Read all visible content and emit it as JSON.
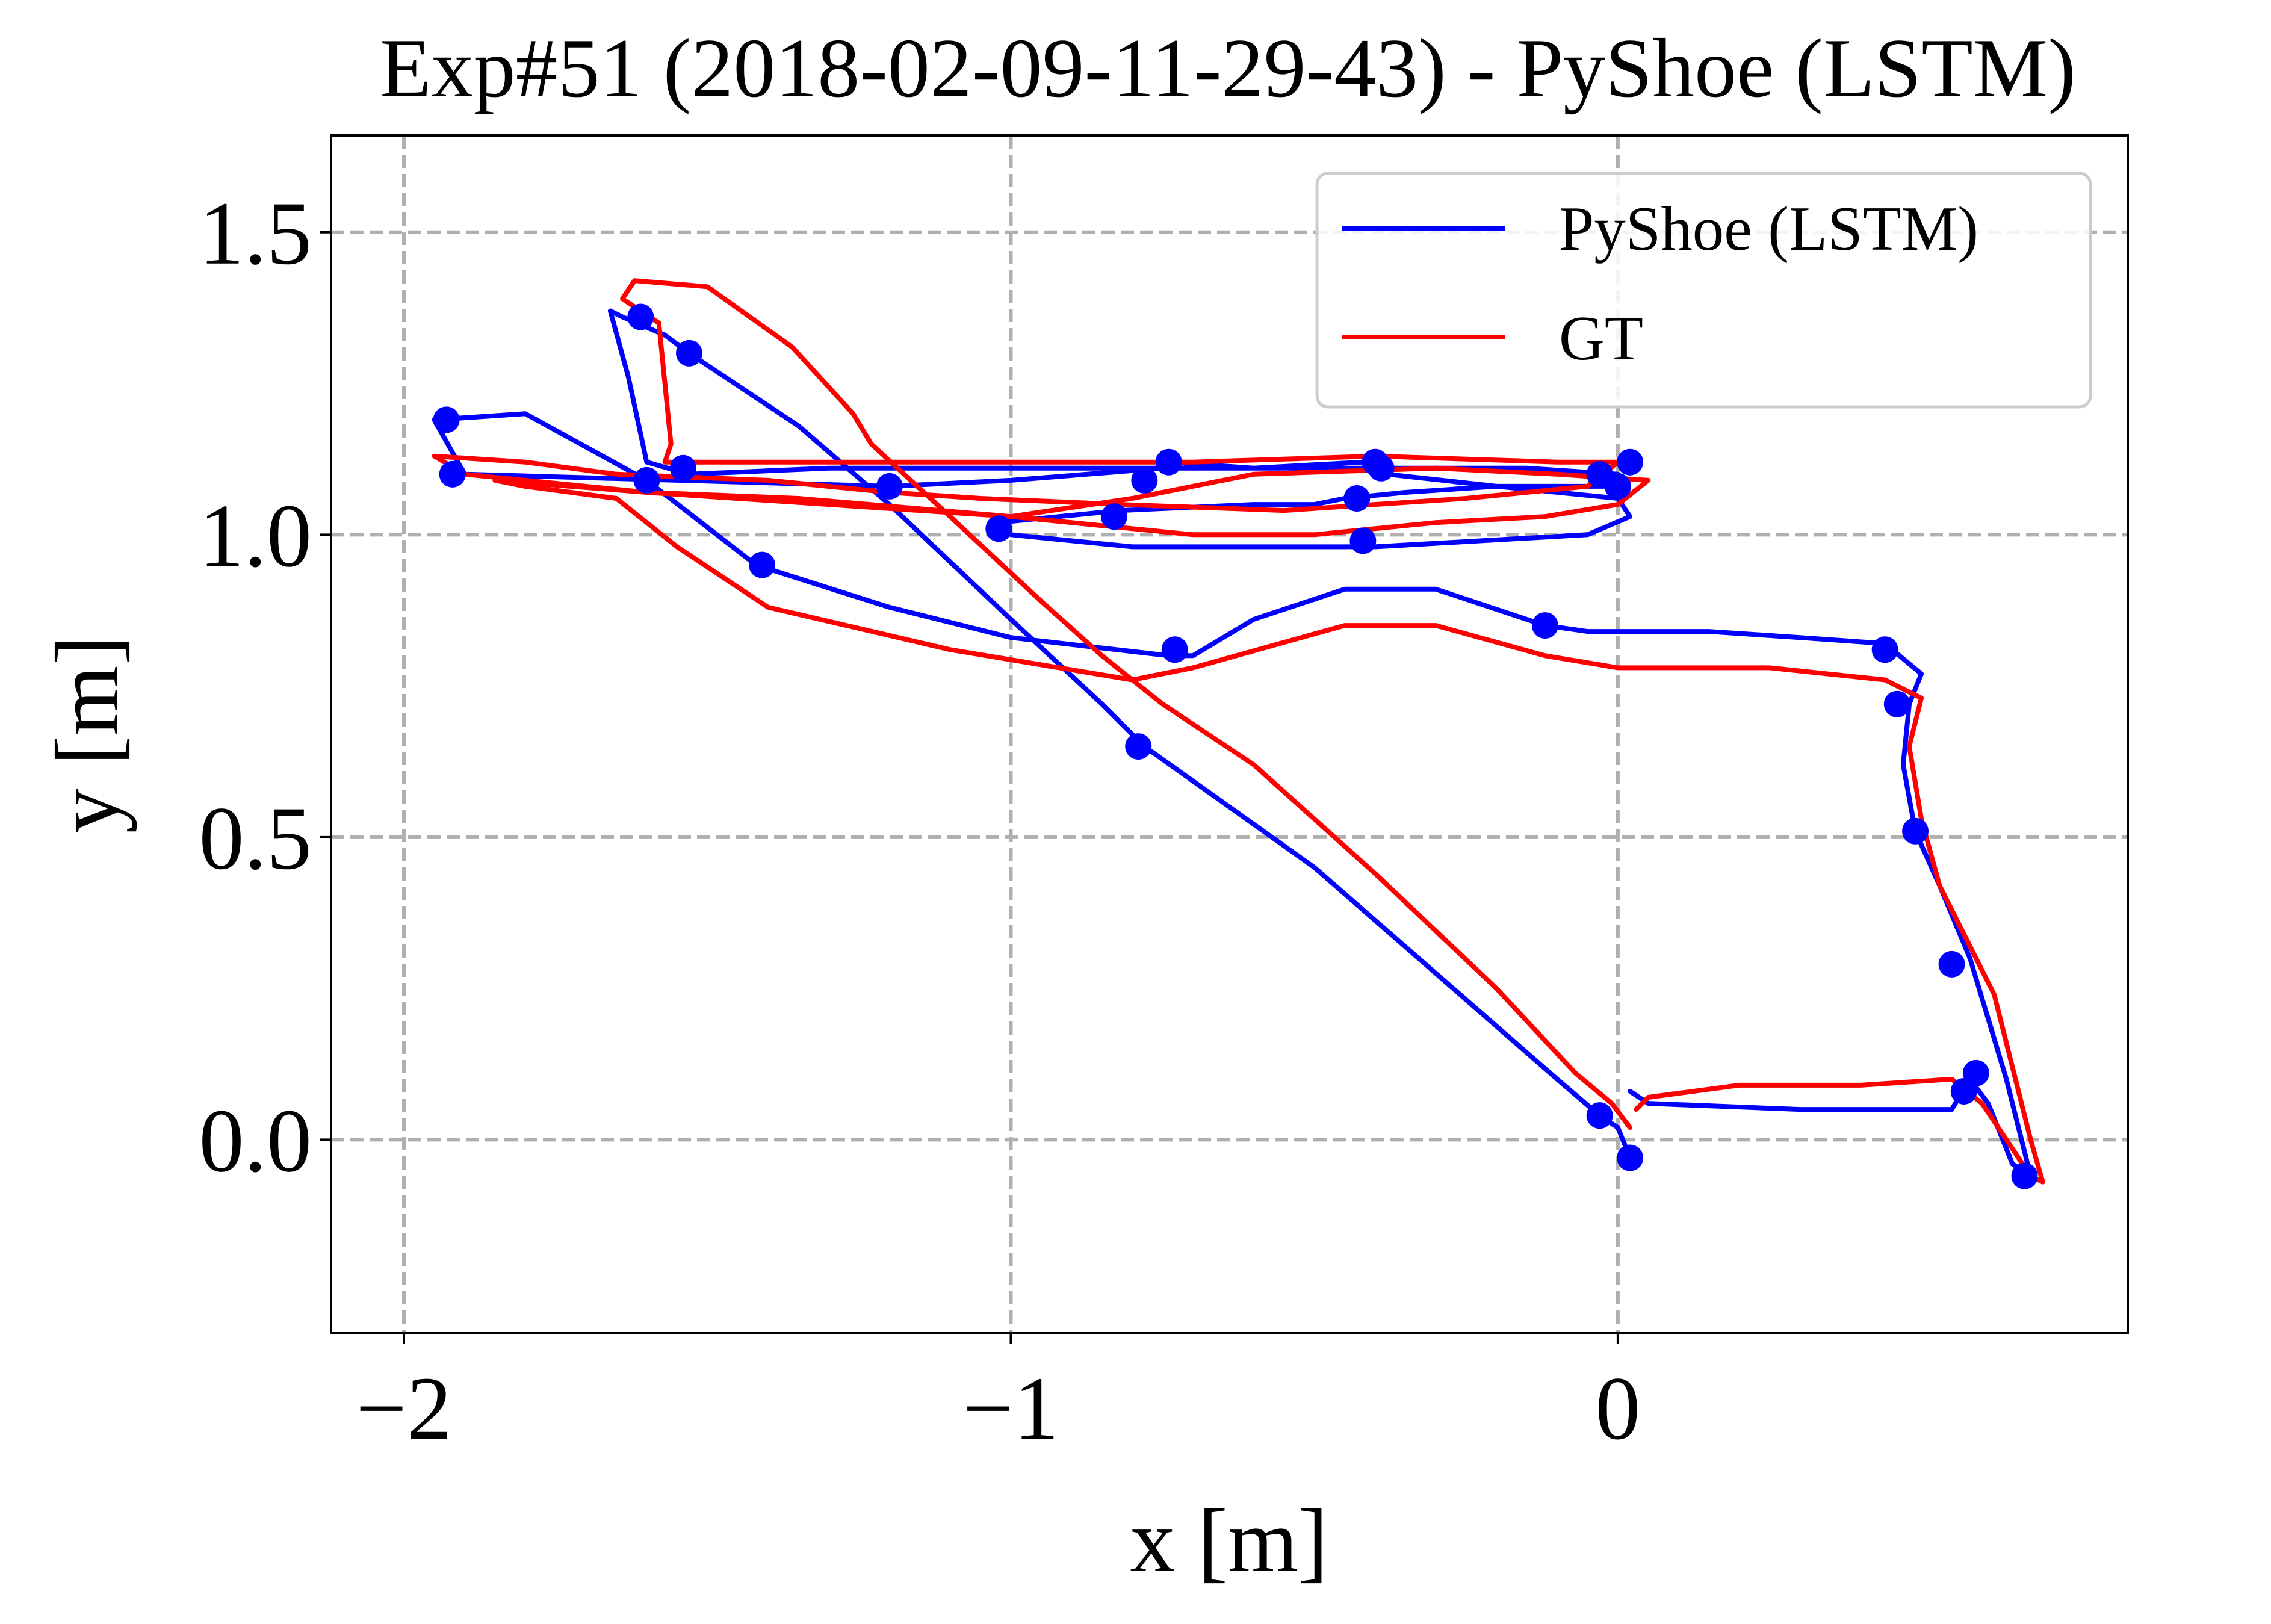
{
  "chart_data": {
    "type": "line",
    "title": "Exp#51 (2018-02-09-11-29-43) - PyShoe (LSTM)",
    "xlabel": "x [m]",
    "ylabel": "y [m]",
    "xlim": [
      -2.12,
      0.84
    ],
    "ylim": [
      -0.32,
      1.66
    ],
    "x_ticks": [
      {
        "value": -2,
        "label": "−2"
      },
      {
        "value": -1,
        "label": "−1"
      },
      {
        "value": 0,
        "label": "0"
      }
    ],
    "y_ticks": [
      {
        "value": 0.0,
        "label": "0.0"
      },
      {
        "value": 0.5,
        "label": "0.5"
      },
      {
        "value": 1.0,
        "label": "1.0"
      },
      {
        "value": 1.5,
        "label": "1.5"
      }
    ],
    "grid": true,
    "legend_position": "top-right",
    "series": [
      {
        "name": "PyShoe (LSTM)",
        "color": "#0000ff",
        "x": [
          0.02,
          0.0,
          -0.03,
          -0.1,
          -0.5,
          -0.78,
          -0.85,
          -1.0,
          -1.2,
          -1.35,
          -1.53,
          -1.57,
          -1.64,
          -1.66,
          -1.63,
          -1.6,
          -1.53,
          -1.3,
          -1.1,
          -0.85,
          -0.82,
          -0.7,
          -0.55,
          -0.4,
          -0.15,
          0.0,
          0.0,
          -0.2,
          -0.35,
          -0.45,
          -0.5,
          -0.6,
          -0.82,
          -1.02,
          -1.0,
          -0.8,
          -0.4,
          -0.05,
          0.02,
          0.0,
          -0.2,
          -0.38,
          -0.42,
          -0.6,
          -0.74,
          -0.75,
          -1.0,
          -1.2,
          -1.55,
          -1.9,
          -1.95,
          -1.8,
          -1.6,
          -1.42,
          -1.2,
          -1.0,
          -0.74,
          -0.7,
          -0.6,
          -0.45,
          -0.3,
          -0.12,
          -0.05,
          0.15,
          0.3,
          0.44,
          0.5,
          0.48,
          0.47,
          0.49,
          0.53,
          0.58,
          0.61,
          0.64,
          0.68,
          0.65,
          0.61,
          0.58,
          0.55,
          0.3,
          0.05,
          0.02
        ],
        "y": [
          -0.03,
          0.02,
          0.04,
          0.1,
          0.45,
          0.65,
          0.72,
          0.86,
          1.05,
          1.18,
          1.3,
          1.33,
          1.36,
          1.37,
          1.26,
          1.12,
          1.1,
          1.11,
          1.11,
          1.11,
          1.11,
          1.11,
          1.11,
          1.11,
          1.11,
          1.1,
          1.08,
          1.08,
          1.07,
          1.06,
          1.05,
          1.05,
          1.04,
          1.02,
          1.0,
          0.98,
          0.98,
          1.0,
          1.03,
          1.06,
          1.08,
          1.1,
          1.12,
          1.11,
          1.12,
          1.11,
          1.09,
          1.08,
          1.09,
          1.1,
          1.19,
          1.2,
          1.09,
          0.95,
          0.88,
          0.83,
          0.8,
          0.8,
          0.86,
          0.91,
          0.91,
          0.85,
          0.84,
          0.84,
          0.83,
          0.82,
          0.77,
          0.72,
          0.62,
          0.51,
          0.42,
          0.3,
          0.2,
          0.1,
          -0.06,
          -0.04,
          0.06,
          0.1,
          0.05,
          0.05,
          0.06,
          0.08
        ],
        "markers": [
          [
            0.02,
            -0.03
          ],
          [
            -0.03,
            0.04
          ],
          [
            -0.79,
            0.65
          ],
          [
            -1.2,
            1.08
          ],
          [
            -1.53,
            1.3
          ],
          [
            -1.61,
            1.36
          ],
          [
            -1.6,
            1.09
          ],
          [
            -1.54,
            1.11
          ],
          [
            -0.74,
            1.12
          ],
          [
            -0.39,
            1.11
          ],
          [
            -0.4,
            1.12
          ],
          [
            -0.78,
            1.09
          ],
          [
            -0.03,
            1.1
          ],
          [
            0.02,
            1.12
          ],
          [
            0.0,
            1.08
          ],
          [
            -0.43,
            1.06
          ],
          [
            -0.83,
            1.03
          ],
          [
            -1.02,
            1.01
          ],
          [
            -0.42,
            0.99
          ],
          [
            -1.93,
            1.19
          ],
          [
            -1.92,
            1.1
          ],
          [
            -1.41,
            0.95
          ],
          [
            -0.73,
            0.81
          ],
          [
            -0.12,
            0.85
          ],
          [
            0.44,
            0.81
          ],
          [
            0.46,
            0.72
          ],
          [
            0.49,
            0.51
          ],
          [
            0.55,
            0.29
          ],
          [
            0.59,
            0.11
          ],
          [
            0.57,
            0.08
          ],
          [
            0.67,
            -0.06
          ]
        ]
      },
      {
        "name": "GT",
        "color": "#ff0000",
        "x": [
          0.02,
          -0.01,
          -0.07,
          -0.2,
          -0.4,
          -0.6,
          -0.75,
          -0.85,
          -0.95,
          -1.1,
          -1.23,
          -1.26,
          -1.36,
          -1.5,
          -1.62,
          -1.64,
          -1.58,
          -1.56,
          -1.57,
          -1.5,
          -1.3,
          -1.0,
          -0.7,
          -0.4,
          -0.1,
          0.0,
          -0.05,
          -0.25,
          -0.55,
          -0.82,
          -1.05,
          -1.2,
          -1.4,
          -1.65,
          -1.8,
          -1.95,
          -1.9,
          -1.6,
          -1.35,
          -1.0,
          -0.7,
          -0.5,
          -0.3,
          -0.12,
          0.0,
          0.05,
          -0.1,
          -0.3,
          -0.6,
          -0.8,
          -1.0,
          -1.3,
          -1.6,
          -1.85,
          -1.8,
          -1.65,
          -1.55,
          -1.4,
          -1.1,
          -0.8,
          -0.7,
          -0.45,
          -0.3,
          -0.12,
          0.0,
          0.25,
          0.44,
          0.5,
          0.48,
          0.5,
          0.53,
          0.57,
          0.62,
          0.65,
          0.68,
          0.7,
          0.68,
          0.6,
          0.55,
          0.4,
          0.2,
          0.05,
          0.03
        ],
        "y": [
          0.02,
          0.06,
          0.11,
          0.25,
          0.44,
          0.62,
          0.72,
          0.8,
          0.89,
          1.03,
          1.15,
          1.2,
          1.31,
          1.41,
          1.42,
          1.39,
          1.35,
          1.15,
          1.12,
          1.12,
          1.12,
          1.12,
          1.12,
          1.13,
          1.12,
          1.12,
          1.08,
          1.06,
          1.04,
          1.05,
          1.06,
          1.07,
          1.09,
          1.1,
          1.12,
          1.13,
          1.1,
          1.07,
          1.06,
          1.03,
          1.0,
          1.0,
          1.02,
          1.03,
          1.05,
          1.09,
          1.1,
          1.11,
          1.1,
          1.06,
          1.03,
          1.05,
          1.07,
          1.09,
          1.08,
          1.06,
          0.98,
          0.88,
          0.81,
          0.76,
          0.78,
          0.85,
          0.85,
          0.8,
          0.78,
          0.78,
          0.76,
          0.73,
          0.65,
          0.53,
          0.42,
          0.34,
          0.24,
          0.12,
          0.0,
          -0.07,
          -0.06,
          0.06,
          0.1,
          0.09,
          0.09,
          0.07,
          0.05
        ]
      }
    ]
  }
}
